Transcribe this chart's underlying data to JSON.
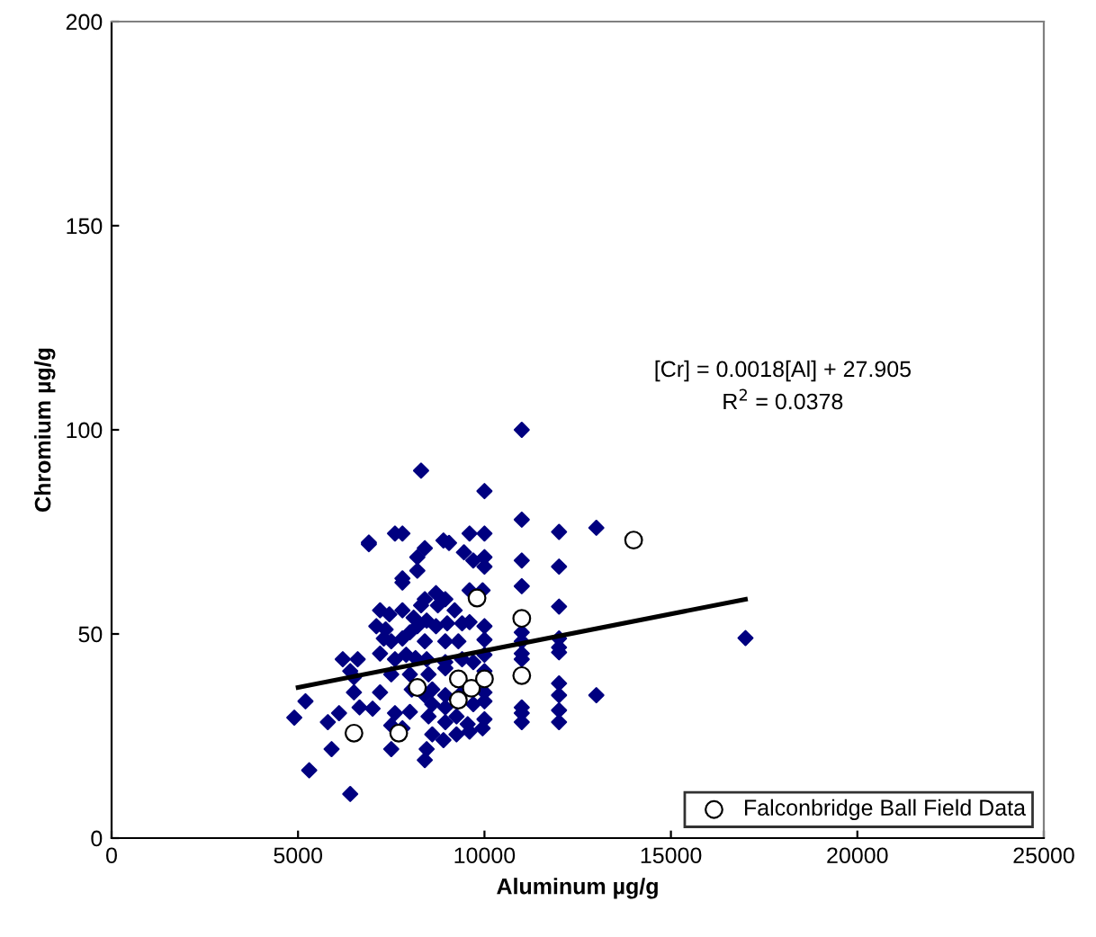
{
  "chart_data": {
    "type": "scatter",
    "xlabel": "Aluminum µg/g",
    "ylabel": "Chromium µg/g",
    "xlim": [
      0,
      25000
    ],
    "xticks": [
      0,
      5000,
      10000,
      15000,
      20000,
      25000
    ],
    "ylim": [
      0,
      200
    ],
    "yticks": [
      0,
      50,
      100,
      150,
      200
    ],
    "grid": false,
    "legend": "bottom right",
    "annotations": [
      "[Cr] = 0.0018[Al] + 27.905",
      "R$^{2}$ = 0.0378"
    ],
    "series": [
      {
        "marker": "diamond",
        "color": "#000080",
        "x": [
          11000,
          8300,
          10000,
          11000,
          12000,
          13000,
          6900,
          6900,
          7600,
          7800,
          8900,
          9050,
          9600,
          10000,
          8400,
          8200,
          9450,
          9700,
          10000,
          10000,
          11000,
          12000,
          8200,
          7800,
          7800,
          9600,
          9950,
          11000,
          12000,
          8400,
          8700,
          8950,
          8300,
          8750,
          7200,
          7450,
          7800,
          8100,
          8450,
          9200,
          9400,
          9600,
          10000,
          7100,
          7350,
          8000,
          8200,
          8700,
          9000,
          7300,
          7500,
          7800,
          8400,
          8950,
          9300,
          10000,
          11000,
          11000,
          12000,
          12000,
          12000,
          7200,
          7900,
          8150,
          8450,
          8950,
          9400,
          9700,
          10000,
          6200,
          6600,
          7600,
          6400,
          6500,
          7500,
          8000,
          8500,
          8950,
          10000,
          11000,
          11000,
          7200,
          8050,
          8400,
          8600,
          8950,
          9400,
          10000,
          10000,
          9700,
          8600,
          8950,
          6500,
          5200,
          4900,
          5800,
          6100,
          6650,
          7000,
          7600,
          8000,
          8500,
          8950,
          9250,
          9550,
          9950,
          10000,
          11000,
          11000,
          11000,
          12000,
          12000,
          12000,
          12000,
          13000,
          7500,
          7800,
          8600,
          9250,
          9600,
          8450,
          8400,
          8900,
          7500,
          5900,
          5300,
          6400,
          17000
        ],
        "values": [
          100,
          90,
          85,
          78,
          75,
          76,
          72.4,
          72,
          74.6,
          74.6,
          72.9,
          72.3,
          74.6,
          74.6,
          71,
          68.8,
          70,
          68,
          68.8,
          66.5,
          68,
          66.5,
          65.5,
          63.6,
          62.6,
          60.7,
          60.7,
          61.7,
          56.7,
          58.5,
          60,
          58.5,
          57,
          57,
          55.8,
          54.8,
          55.8,
          54,
          53.3,
          55.8,
          52.6,
          52.9,
          51.9,
          51.9,
          51.1,
          50.4,
          51.9,
          51.9,
          52.6,
          48.9,
          48.2,
          48.9,
          48.2,
          48.2,
          48.2,
          48.6,
          50.4,
          48.2,
          48.9,
          46.7,
          45.5,
          45.2,
          44.9,
          44.1,
          43.8,
          43.1,
          43.8,
          43.1,
          44.9,
          43.8,
          43.8,
          43.8,
          40.9,
          39.4,
          40.1,
          40.1,
          40.1,
          41.6,
          40.9,
          43.8,
          45.2,
          35.7,
          36.4,
          35,
          36.4,
          35,
          35.7,
          35.7,
          33.5,
          32.8,
          32.8,
          32,
          35.7,
          33.5,
          29.5,
          28.4,
          30.6,
          32,
          31.7,
          30.6,
          30.9,
          29.8,
          28.4,
          29.8,
          27.9,
          26.9,
          29.1,
          32,
          30.6,
          28.4,
          37.9,
          35,
          31.3,
          28.4,
          35,
          27.6,
          26.9,
          25.4,
          25.4,
          26.1,
          21.8,
          19.1,
          24,
          21.8,
          21.8,
          16.6,
          10.8,
          49
        ]
      },
      {
        "type": "line",
        "color": "#000000",
        "x": [
          5000,
          17000
        ],
        "values": [
          36.9,
          58.5
        ]
      },
      {
        "marker": "circle",
        "name": "Falconbridge Ball Field Data",
        "color": "#ffffff",
        "x": [
          6500,
          7700,
          8200,
          9800,
          9300,
          9650,
          10000,
          9300,
          11000,
          11000,
          14000
        ],
        "values": [
          25.7,
          25.7,
          36.9,
          58.8,
          39,
          36.7,
          39,
          33.8,
          53.8,
          39.8,
          73
        ]
      }
    ]
  }
}
